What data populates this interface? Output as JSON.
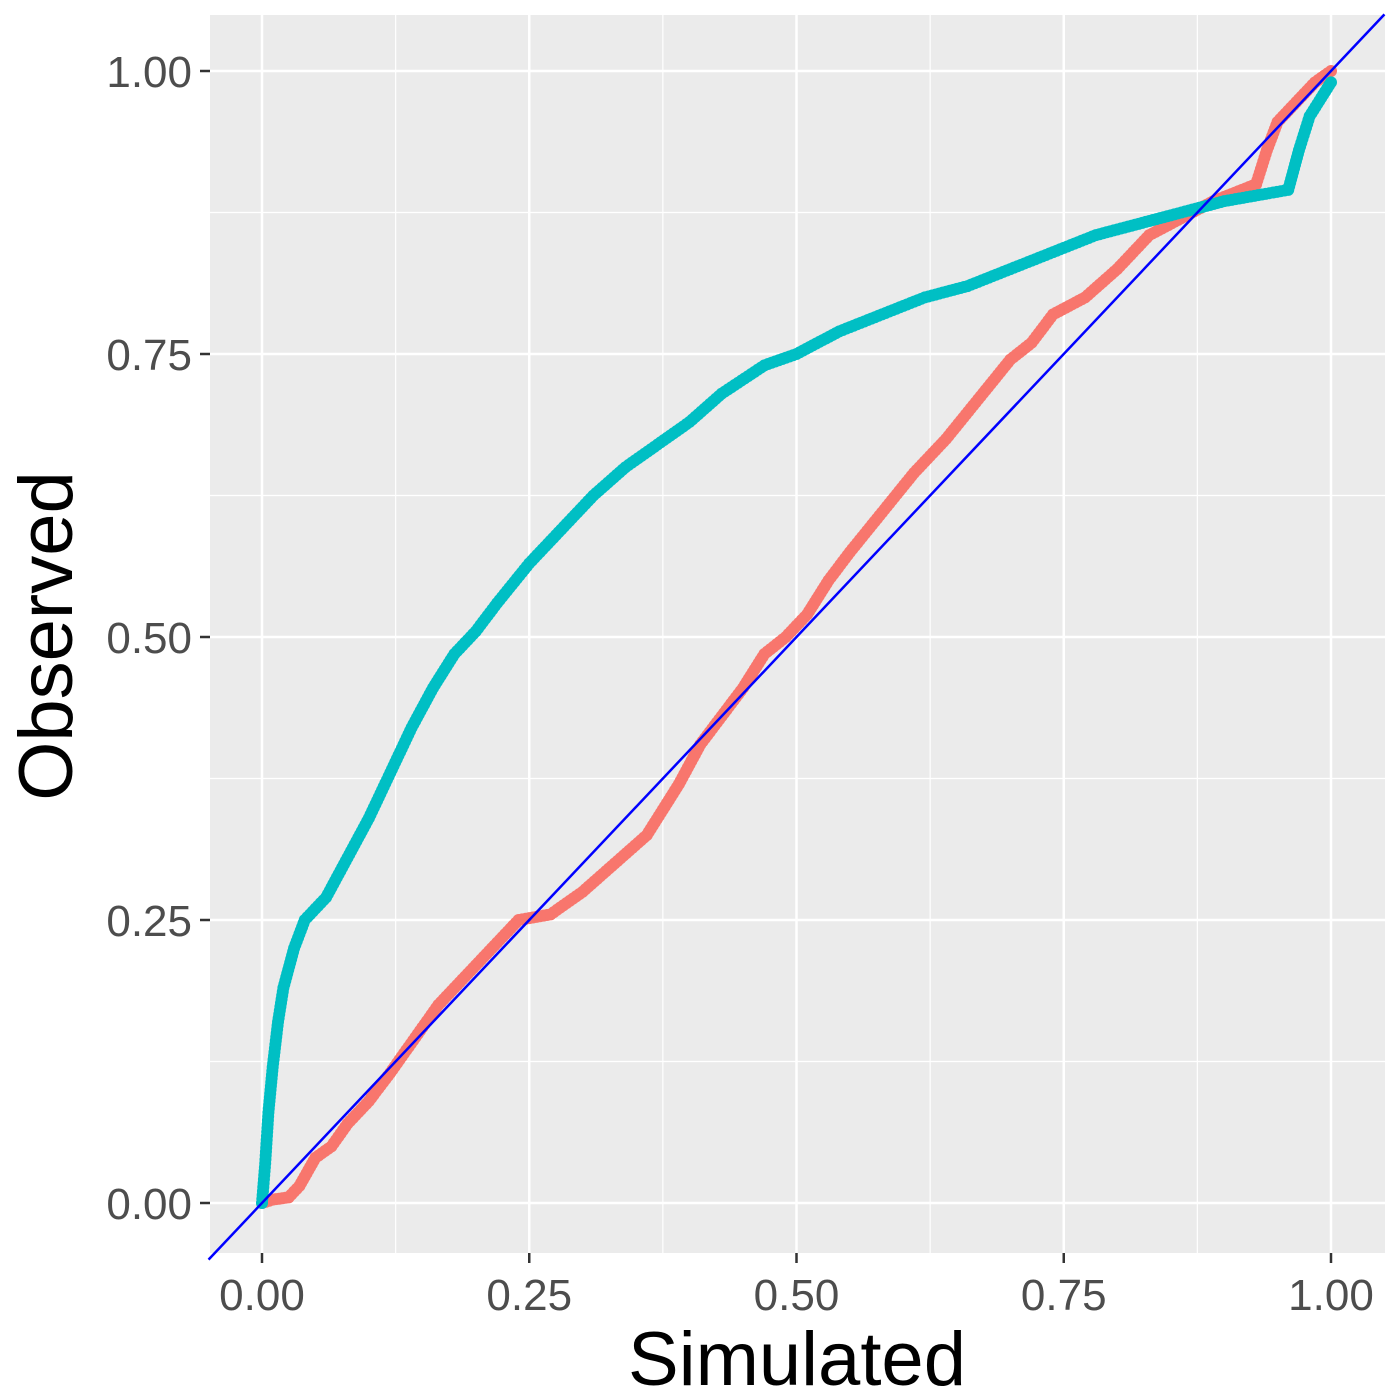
{
  "chart_data": {
    "type": "scatter",
    "title": "",
    "xlabel": "Simulated",
    "ylabel": "Observed",
    "xlim": [
      -0.05,
      1.05
    ],
    "ylim": [
      -0.05,
      1.05
    ],
    "x_ticks": [
      0.0,
      0.25,
      0.5,
      0.75,
      1.0
    ],
    "y_ticks": [
      0.0,
      0.25,
      0.5,
      0.75,
      1.0
    ],
    "x_tick_labels": [
      "0.00",
      "0.25",
      "0.50",
      "0.75",
      "1.00"
    ],
    "y_tick_labels": [
      "0.00",
      "0.25",
      "0.50",
      "0.75",
      "1.00"
    ],
    "grid": true,
    "legend": "none",
    "reference_line": {
      "slope": 1,
      "intercept": 0,
      "color": "#0000ff"
    },
    "series": [
      {
        "name": "series-red",
        "color": "#f8766d",
        "points": [
          [
            0.0,
            0.0
          ],
          [
            0.01,
            0.003
          ],
          [
            0.025,
            0.005
          ],
          [
            0.035,
            0.015
          ],
          [
            0.05,
            0.04
          ],
          [
            0.065,
            0.05
          ],
          [
            0.08,
            0.07
          ],
          [
            0.1,
            0.09
          ],
          [
            0.12,
            0.115
          ],
          [
            0.135,
            0.135
          ],
          [
            0.15,
            0.155
          ],
          [
            0.165,
            0.175
          ],
          [
            0.18,
            0.19
          ],
          [
            0.2,
            0.21
          ],
          [
            0.22,
            0.23
          ],
          [
            0.24,
            0.25
          ],
          [
            0.27,
            0.255
          ],
          [
            0.3,
            0.275
          ],
          [
            0.33,
            0.3
          ],
          [
            0.36,
            0.325
          ],
          [
            0.39,
            0.37
          ],
          [
            0.41,
            0.405
          ],
          [
            0.43,
            0.43
          ],
          [
            0.45,
            0.455
          ],
          [
            0.47,
            0.485
          ],
          [
            0.49,
            0.5
          ],
          [
            0.51,
            0.52
          ],
          [
            0.53,
            0.55
          ],
          [
            0.55,
            0.575
          ],
          [
            0.58,
            0.61
          ],
          [
            0.61,
            0.645
          ],
          [
            0.64,
            0.675
          ],
          [
            0.67,
            0.71
          ],
          [
            0.7,
            0.745
          ],
          [
            0.72,
            0.76
          ],
          [
            0.74,
            0.785
          ],
          [
            0.77,
            0.8
          ],
          [
            0.8,
            0.825
          ],
          [
            0.83,
            0.855
          ],
          [
            0.86,
            0.87
          ],
          [
            0.89,
            0.885
          ],
          [
            0.93,
            0.9
          ],
          [
            0.94,
            0.93
          ],
          [
            0.95,
            0.955
          ],
          [
            0.97,
            0.975
          ],
          [
            0.985,
            0.99
          ],
          [
            1.0,
            1.0
          ]
        ]
      },
      {
        "name": "series-teal",
        "color": "#00bfc4",
        "points": [
          [
            0.0,
            0.0
          ],
          [
            0.003,
            0.035
          ],
          [
            0.006,
            0.08
          ],
          [
            0.01,
            0.12
          ],
          [
            0.015,
            0.16
          ],
          [
            0.02,
            0.19
          ],
          [
            0.03,
            0.225
          ],
          [
            0.04,
            0.25
          ],
          [
            0.06,
            0.27
          ],
          [
            0.08,
            0.305
          ],
          [
            0.1,
            0.34
          ],
          [
            0.12,
            0.38
          ],
          [
            0.14,
            0.42
          ],
          [
            0.16,
            0.455
          ],
          [
            0.18,
            0.485
          ],
          [
            0.2,
            0.505
          ],
          [
            0.22,
            0.53
          ],
          [
            0.25,
            0.565
          ],
          [
            0.28,
            0.595
          ],
          [
            0.31,
            0.625
          ],
          [
            0.34,
            0.65
          ],
          [
            0.37,
            0.67
          ],
          [
            0.4,
            0.69
          ],
          [
            0.43,
            0.715
          ],
          [
            0.47,
            0.74
          ],
          [
            0.5,
            0.75
          ],
          [
            0.54,
            0.77
          ],
          [
            0.58,
            0.785
          ],
          [
            0.62,
            0.8
          ],
          [
            0.66,
            0.81
          ],
          [
            0.7,
            0.825
          ],
          [
            0.74,
            0.84
          ],
          [
            0.78,
            0.855
          ],
          [
            0.82,
            0.865
          ],
          [
            0.86,
            0.875
          ],
          [
            0.9,
            0.885
          ],
          [
            0.96,
            0.895
          ],
          [
            0.97,
            0.93
          ],
          [
            0.98,
            0.96
          ],
          [
            1.0,
            0.99
          ]
        ]
      }
    ]
  }
}
